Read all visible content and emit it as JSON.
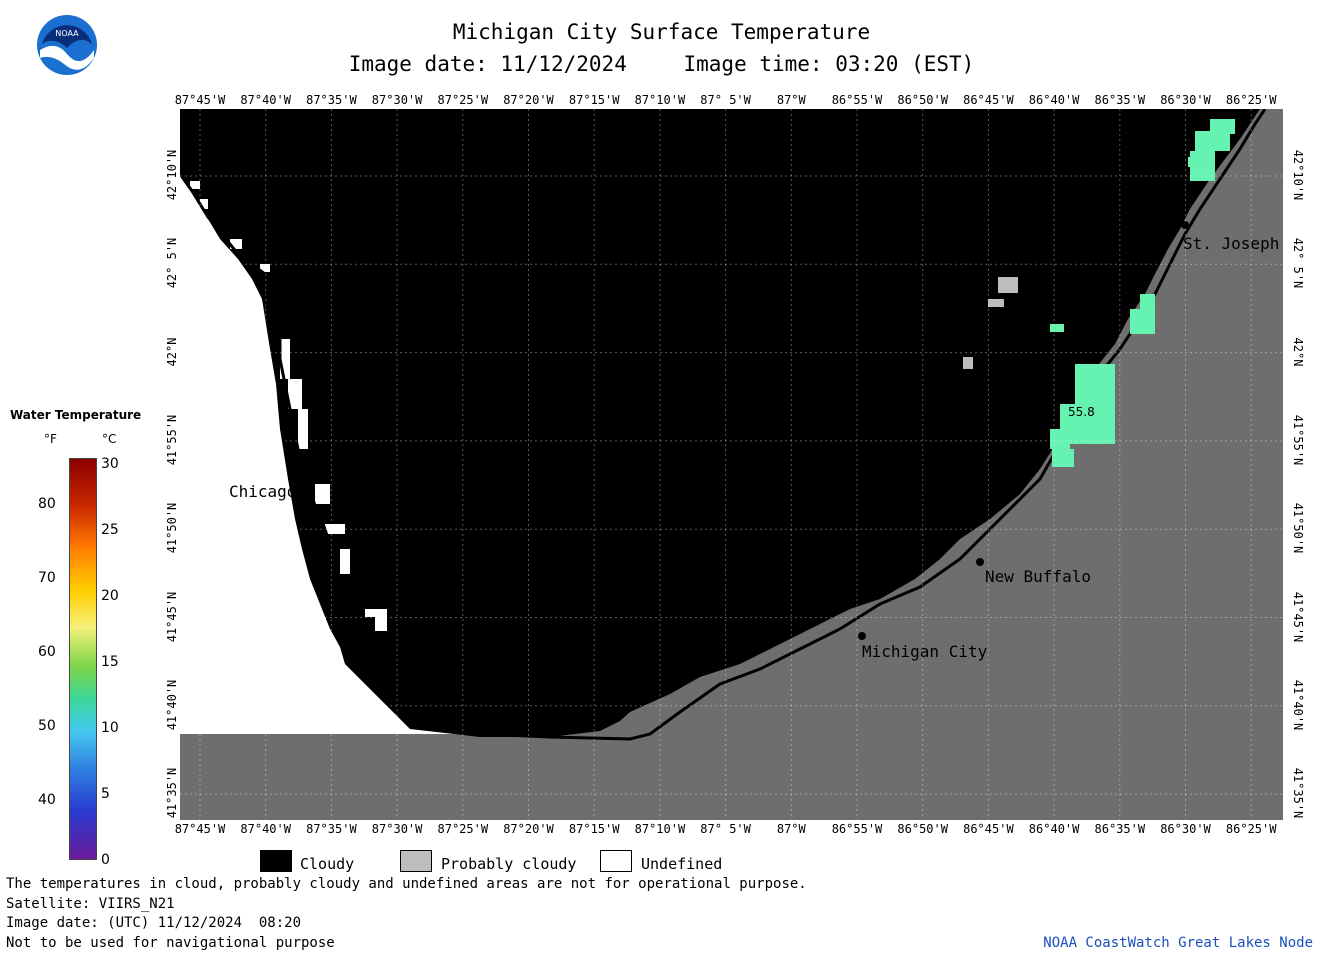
{
  "header": {
    "title": "Michigan City Surface Temperature",
    "image_date": "Image date: 11/12/2024",
    "image_time": "Image time: 03:20 (EST)"
  },
  "logo": {
    "text": "NOAA"
  },
  "map": {
    "lon_labels": [
      "87°45'W",
      "87°40'W",
      "87°35'W",
      "87°30'W",
      "87°25'W",
      "87°20'W",
      "87°15'W",
      "87°10'W",
      "87° 5'W",
      "87°W",
      "86°55'W",
      "86°50'W",
      "86°45'W",
      "86°40'W",
      "86°35'W",
      "86°30'W",
      "86°25'W"
    ],
    "lat_labels": [
      "42°10'N",
      "42° 5'N",
      "42°N",
      "41°55'N",
      "41°50'N",
      "41°45'N",
      "41°40'N",
      "41°35'N"
    ],
    "cities": [
      "Chicago",
      "St. Joseph",
      "New Buffalo",
      "Michigan City"
    ],
    "temp_reading": "55.8",
    "colors": {
      "cloudy": "#000000",
      "land": "#6e6e6e",
      "probably_cloudy": "#bdbdbd",
      "undefined": "#ffffff",
      "water_temp": "#66f2b0"
    }
  },
  "legend": {
    "title": "Water Temperature",
    "unit_f": "°F",
    "unit_c": "°C",
    "f_ticks": [
      "80",
      "70",
      "60",
      "50",
      "40"
    ],
    "c_ticks": [
      "30",
      "25",
      "20",
      "15",
      "10",
      "5",
      "0"
    ]
  },
  "key": {
    "cloudy": "Cloudy",
    "probably_cloudy": "Probably cloudy",
    "undefined": "Undefined"
  },
  "footer": {
    "note": "The temperatures in cloud, probably cloudy and undefined areas are not for operational purpose.",
    "satellite": "Satellite: VIIRS_N21",
    "utc_date": "Image date: (UTC) 11/12/2024  08:20",
    "nav_warning": "Not to be used for navigational purpose",
    "credit": "NOAA CoastWatch Great Lakes Node"
  }
}
